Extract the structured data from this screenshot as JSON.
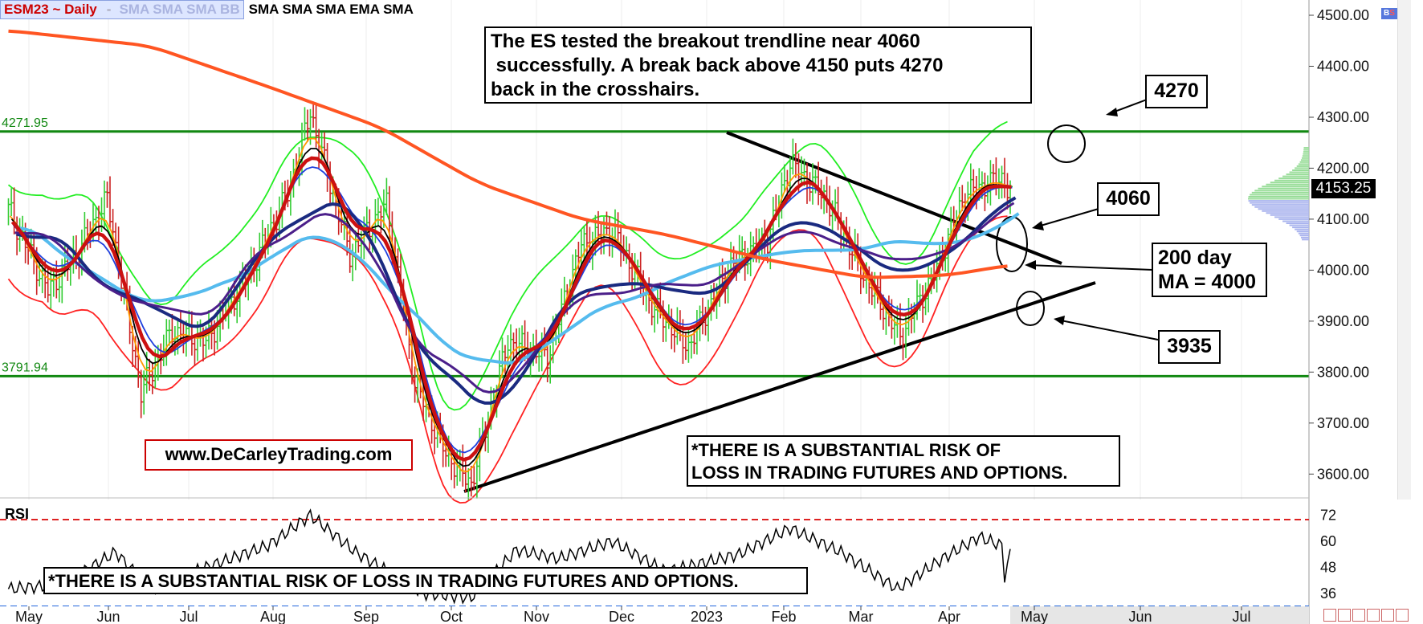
{
  "header": {
    "symbol": "ESM23 ~ Daily",
    "sep": "-",
    "studies_boxed": "SMA SMA SMA BB",
    "studies_tail": "SMA SMA SMA EMA SMA"
  },
  "colors": {
    "up_bar": "#33cc33",
    "down_bar": "#cc2222",
    "orange": "#ff9900",
    "black": "#000000",
    "blue": "#1f3fdd",
    "light_blue": "#55bbee",
    "purple": "#4b1f8a",
    "navy": "#1a2a80",
    "red_ma": "#cc1111",
    "ma200": "#ff5522",
    "bb_upper": "#22ee22",
    "bb_lower": "#ff2222",
    "level_line": "#118811",
    "watermark_border": "#cc0000"
  },
  "chart_data": {
    "type": "line",
    "title": "ESM23 ~ Daily",
    "x_labels": [
      "May",
      "Jun",
      "Jul",
      "Aug",
      "Sep",
      "Oct",
      "Nov",
      "Dec",
      "2023",
      "Feb",
      "Mar",
      "Apr",
      "May",
      "Jun",
      "Jul"
    ],
    "y_ticks": [
      "4500.00",
      "4400.00",
      "4300.00",
      "4200.00",
      "4100.00",
      "4000.00",
      "3900.00",
      "3800.00",
      "3700.00",
      "3600.00"
    ],
    "ylim": [
      3550,
      4530
    ],
    "last_price": "4153.25",
    "levels": [
      {
        "label": "4271.95",
        "value": 4272
      },
      {
        "label": "3791.94",
        "value": 3792
      }
    ],
    "price": [
      {
        "date": "2022-05-01",
        "value": 4120
      },
      {
        "date": "2022-05-15",
        "value": 3960
      },
      {
        "date": "2022-05-25",
        "value": 4030
      },
      {
        "date": "2022-06-05",
        "value": 4140
      },
      {
        "date": "2022-06-17",
        "value": 3760
      },
      {
        "date": "2022-06-28",
        "value": 3880
      },
      {
        "date": "2022-07-10",
        "value": 3860
      },
      {
        "date": "2022-07-25",
        "value": 3990
      },
      {
        "date": "2022-08-08",
        "value": 4150
      },
      {
        "date": "2022-08-16",
        "value": 4310
      },
      {
        "date": "2022-08-30",
        "value": 4030
      },
      {
        "date": "2022-09-12",
        "value": 4130
      },
      {
        "date": "2022-09-22",
        "value": 3780
      },
      {
        "date": "2022-10-03",
        "value": 3640
      },
      {
        "date": "2022-10-12",
        "value": 3580
      },
      {
        "date": "2022-10-25",
        "value": 3860
      },
      {
        "date": "2022-11-08",
        "value": 3830
      },
      {
        "date": "2022-11-20",
        "value": 4050
      },
      {
        "date": "2022-12-01",
        "value": 4080
      },
      {
        "date": "2022-12-15",
        "value": 3930
      },
      {
        "date": "2022-12-28",
        "value": 3850
      },
      {
        "date": "2023-01-12",
        "value": 4010
      },
      {
        "date": "2023-01-25",
        "value": 4060
      },
      {
        "date": "2023-02-02",
        "value": 4210
      },
      {
        "date": "2023-02-15",
        "value": 4140
      },
      {
        "date": "2023-02-28",
        "value": 3990
      },
      {
        "date": "2023-03-13",
        "value": 3870
      },
      {
        "date": "2023-03-25",
        "value": 3990
      },
      {
        "date": "2023-04-05",
        "value": 4150
      },
      {
        "date": "2023-04-18",
        "value": 4180
      },
      {
        "date": "2023-04-21",
        "value": 4153.25
      }
    ],
    "ma200": [
      {
        "date": "2022-05-01",
        "value": 4470
      },
      {
        "date": "2022-06-20",
        "value": 4440
      },
      {
        "date": "2022-08-01",
        "value": 4360
      },
      {
        "date": "2022-09-10",
        "value": 4280
      },
      {
        "date": "2022-10-15",
        "value": 4170
      },
      {
        "date": "2022-11-20",
        "value": 4100
      },
      {
        "date": "2022-12-20",
        "value": 4070
      },
      {
        "date": "2023-01-25",
        "value": 4020
      },
      {
        "date": "2023-03-01",
        "value": 3985
      },
      {
        "date": "2023-03-30",
        "value": 3990
      },
      {
        "date": "2023-04-21",
        "value": 4010
      }
    ],
    "rsi": {
      "label": "RSI",
      "ticks": [
        "72",
        "60",
        "48",
        "36"
      ],
      "ylim": [
        30,
        80
      ],
      "overbought": 70,
      "oversold": 30,
      "values": [
        {
          "date": "2022-05-01",
          "value": 38
        },
        {
          "date": "2022-05-20",
          "value": 40
        },
        {
          "date": "2022-06-08",
          "value": 55
        },
        {
          "date": "2022-06-20",
          "value": 38
        },
        {
          "date": "2022-07-10",
          "value": 48
        },
        {
          "date": "2022-08-01",
          "value": 58
        },
        {
          "date": "2022-08-16",
          "value": 72
        },
        {
          "date": "2022-09-01",
          "value": 55
        },
        {
          "date": "2022-09-25",
          "value": 36
        },
        {
          "date": "2022-10-12",
          "value": 34
        },
        {
          "date": "2022-10-28",
          "value": 56
        },
        {
          "date": "2022-11-12",
          "value": 52
        },
        {
          "date": "2022-12-01",
          "value": 60
        },
        {
          "date": "2022-12-20",
          "value": 46
        },
        {
          "date": "2023-01-15",
          "value": 54
        },
        {
          "date": "2023-02-02",
          "value": 66
        },
        {
          "date": "2023-02-20",
          "value": 55
        },
        {
          "date": "2023-03-12",
          "value": 38
        },
        {
          "date": "2023-03-28",
          "value": 52
        },
        {
          "date": "2023-04-10",
          "value": 62
        },
        {
          "date": "2023-04-18",
          "value": 58
        },
        {
          "date": "2023-04-19",
          "value": 44
        },
        {
          "date": "2023-04-21",
          "value": 54
        }
      ]
    },
    "annotations": [
      {
        "id": "note_main",
        "text": "The ES tested the breakout trendline near 4060\n successfully. A break back above 4150 puts 4270\nback in the crosshairs."
      },
      {
        "id": "label_4270",
        "text": "4270"
      },
      {
        "id": "label_4060",
        "text": "4060"
      },
      {
        "id": "label_200",
        "text": "200 day\nMA = 4000"
      },
      {
        "id": "label_3935",
        "text": "3935"
      },
      {
        "id": "website",
        "text": "www.DeCarleyTrading.com"
      },
      {
        "id": "risk_main",
        "text": "*THERE IS A SUBSTANTIAL RISK OF\nLOSS IN TRADING FUTURES AND OPTIONS."
      },
      {
        "id": "risk_rsi",
        "text": "*THERE IS A SUBSTANTIAL RISK OF LOSS IN TRADING FUTURES AND OPTIONS."
      }
    ]
  },
  "toolbar": {
    "icon": "bs-icon"
  }
}
